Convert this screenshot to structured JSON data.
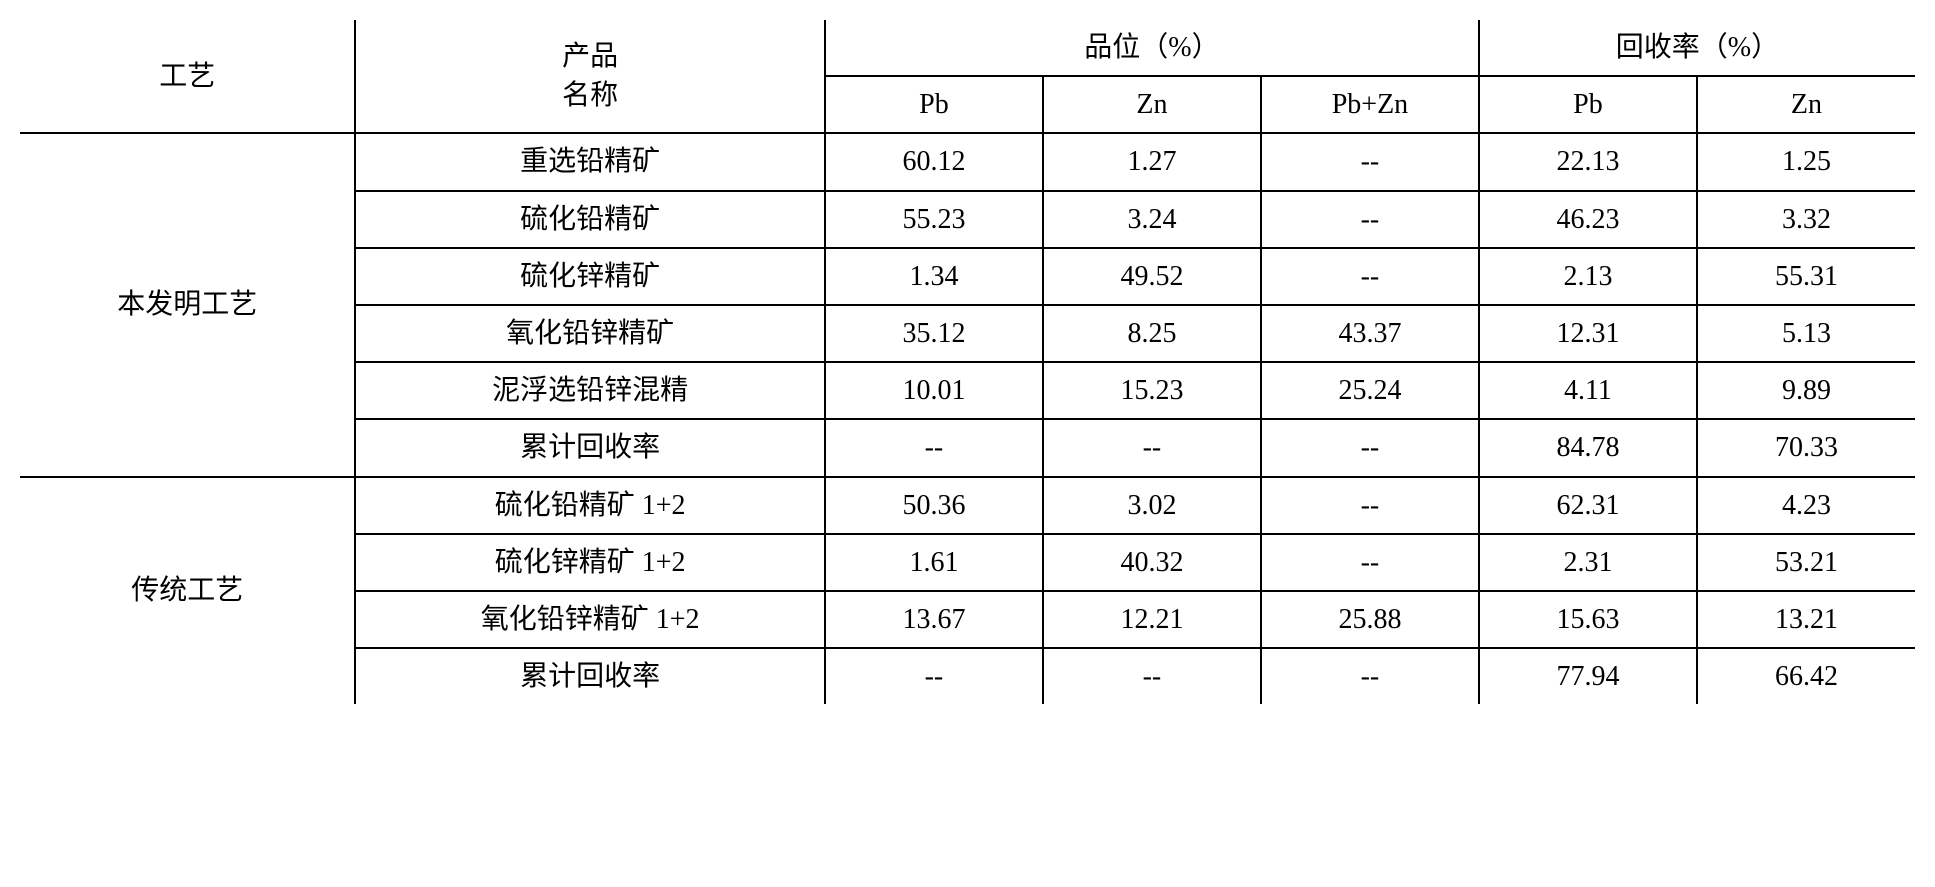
{
  "headers": {
    "process": "工艺",
    "product_name_line1": "产品",
    "product_name_line2": "名称",
    "grade": "品位（%）",
    "recovery": "回收率（%）",
    "pb": "Pb",
    "zn": "Zn",
    "pbzn": "Pb+Zn"
  },
  "process1": {
    "name": "本发明工艺",
    "rows": [
      {
        "product": "重选铅精矿",
        "grade_pb": "60.12",
        "grade_zn": "1.27",
        "grade_pbzn": "--",
        "rec_pb": "22.13",
        "rec_zn": "1.25"
      },
      {
        "product": "硫化铅精矿",
        "grade_pb": "55.23",
        "grade_zn": "3.24",
        "grade_pbzn": "--",
        "rec_pb": "46.23",
        "rec_zn": "3.32"
      },
      {
        "product": "硫化锌精矿",
        "grade_pb": "1.34",
        "grade_zn": "49.52",
        "grade_pbzn": "--",
        "rec_pb": "2.13",
        "rec_zn": "55.31"
      },
      {
        "product": "氧化铅锌精矿",
        "grade_pb": "35.12",
        "grade_zn": "8.25",
        "grade_pbzn": "43.37",
        "rec_pb": "12.31",
        "rec_zn": "5.13"
      },
      {
        "product": "泥浮选铅锌混精",
        "grade_pb": "10.01",
        "grade_zn": "15.23",
        "grade_pbzn": "25.24",
        "rec_pb": "4.11",
        "rec_zn": "9.89"
      },
      {
        "product": "累计回收率",
        "grade_pb": "--",
        "grade_zn": "--",
        "grade_pbzn": "--",
        "rec_pb": "84.78",
        "rec_zn": "70.33"
      }
    ]
  },
  "process2": {
    "name": "传统工艺",
    "rows": [
      {
        "product": "硫化铅精矿 1+2",
        "grade_pb": "50.36",
        "grade_zn": "3.02",
        "grade_pbzn": "--",
        "rec_pb": "62.31",
        "rec_zn": "4.23"
      },
      {
        "product": "硫化锌精矿 1+2",
        "grade_pb": "1.61",
        "grade_zn": "40.32",
        "grade_pbzn": "--",
        "rec_pb": "2.31",
        "rec_zn": "53.21"
      },
      {
        "product": "氧化铅锌精矿 1+2",
        "grade_pb": "13.67",
        "grade_zn": "12.21",
        "grade_pbzn": "25.88",
        "rec_pb": "15.63",
        "rec_zn": "13.21"
      },
      {
        "product": "累计回收率",
        "grade_pb": "--",
        "grade_zn": "--",
        "grade_pbzn": "--",
        "rec_pb": "77.94",
        "rec_zn": "66.42"
      }
    ]
  },
  "table_style": {
    "border_color": "#000000",
    "border_width": 2,
    "background_color": "#ffffff",
    "text_color": "#000000",
    "font_size": 28,
    "font_family": "SimSun"
  }
}
